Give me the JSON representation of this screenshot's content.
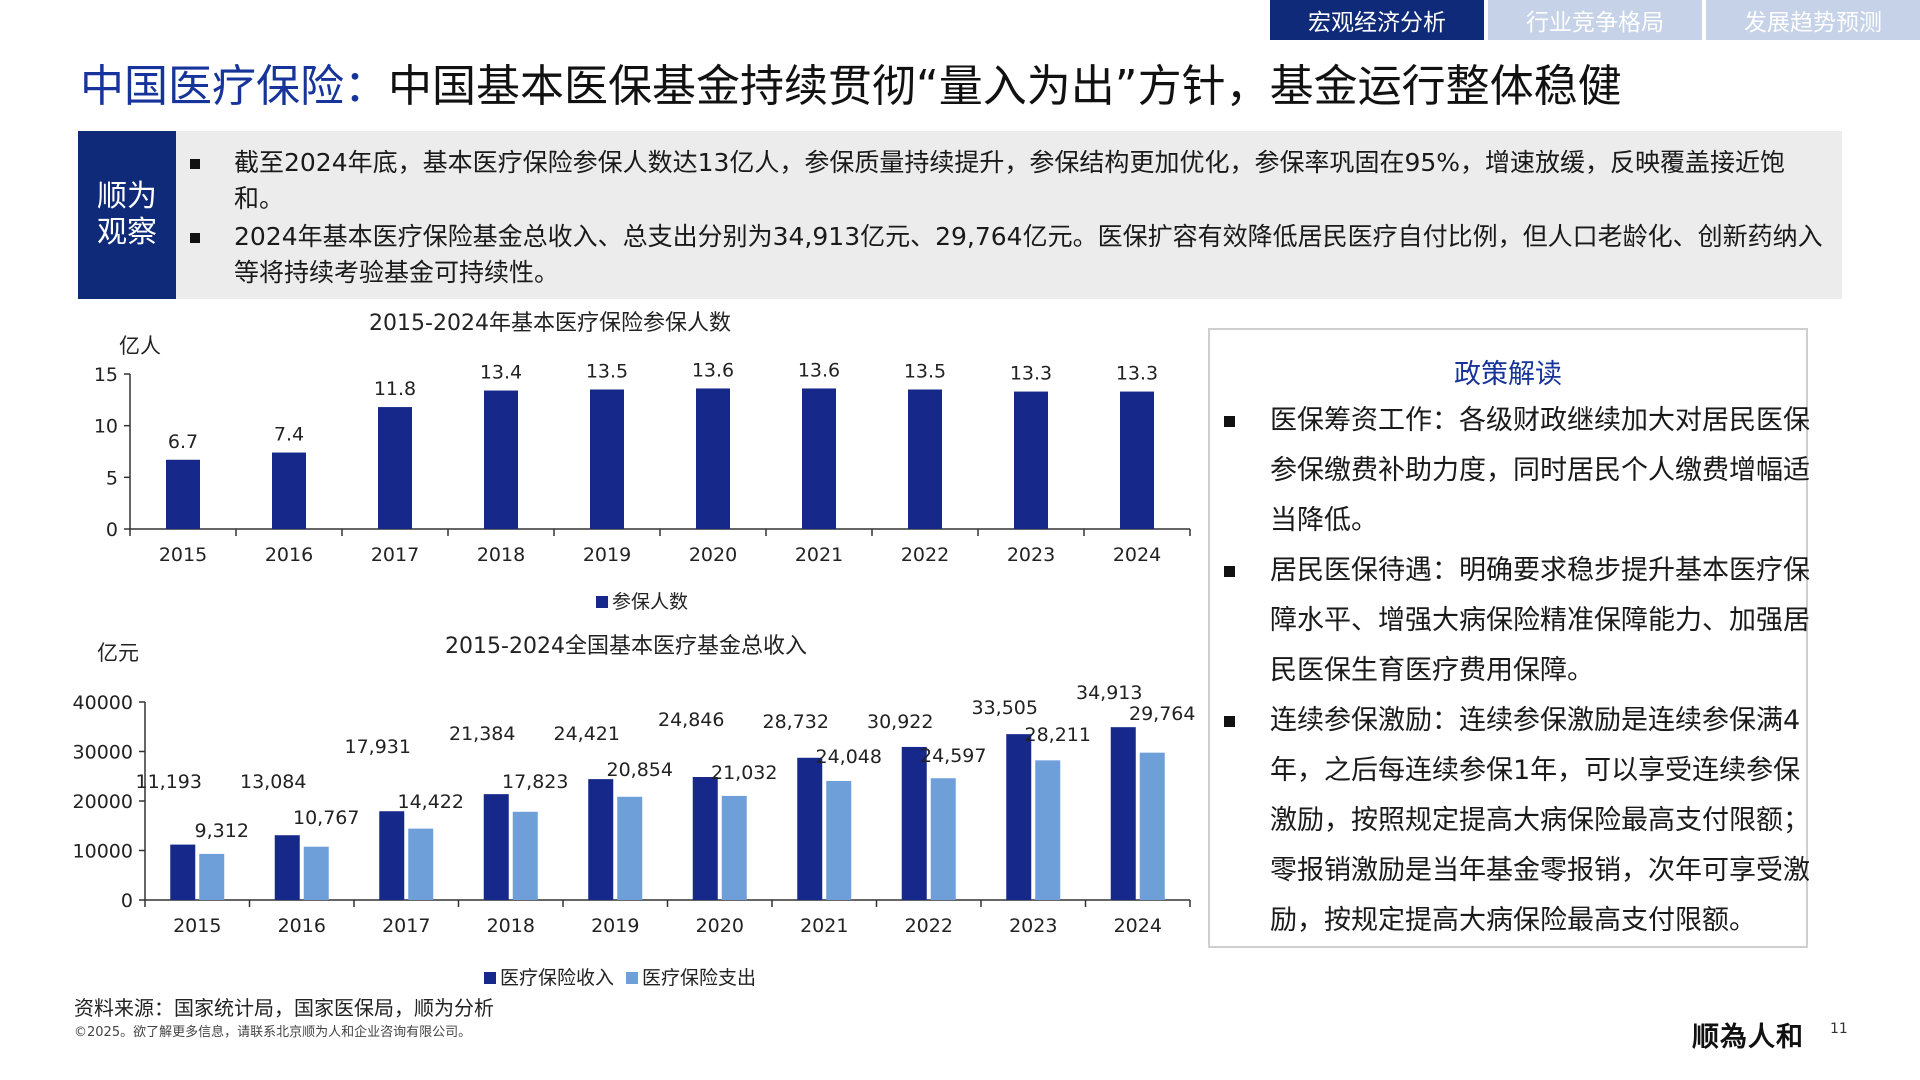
{
  "tabs": [
    "宏观经济分析",
    "行业竞争格局",
    "发展趋势预测"
  ],
  "title": {
    "part1": "中国医疗保险：",
    "part2": "中国基本医保基金持续贯彻“量入为出”方针，基金运行整体稳健"
  },
  "observation": {
    "label": "顺为观察",
    "bullets": [
      "截至2024年底，基本医疗保险参保人数达13亿人，参保质量持续提升，参保结构更加优化，参保率巩固在95%，增速放缓，反映覆盖接近饱和。",
      "2024年基本医疗保险基金总收入、总支出分别为34,913亿元、29,764亿元。医保扩容有效降低居民医疗自付比例，但人口老龄化、创新药纳入等将持续考验基金可持续性。"
    ]
  },
  "chart_data": [
    {
      "type": "bar",
      "title": "2015-2024年基本医疗保险参保人数",
      "ylabel": "亿人",
      "xlabel": "",
      "categories": [
        "2015",
        "2016",
        "2017",
        "2018",
        "2019",
        "2020",
        "2021",
        "2022",
        "2023",
        "2024"
      ],
      "series": [
        {
          "name": "参保人数",
          "values": [
            6.7,
            7.4,
            11.8,
            13.4,
            13.5,
            13.6,
            13.6,
            13.5,
            13.3,
            13.3
          ],
          "color": "#16288a"
        }
      ],
      "data_labels": [
        "6.7",
        "7.4",
        "11.8",
        "13.4",
        "13.5",
        "13.6",
        "13.6",
        "13.5",
        "13.3",
        "13.3"
      ],
      "ylim": [
        0,
        15
      ],
      "yticks": [
        "0",
        "5",
        "10",
        "15"
      ],
      "grid": false,
      "legend": "bottom-center"
    },
    {
      "type": "bar",
      "title": "2015-2024全国基本医疗基金总收入",
      "ylabel": "亿元",
      "xlabel": "",
      "categories": [
        "2015",
        "2016",
        "2017",
        "2018",
        "2019",
        "2020",
        "2021",
        "2022",
        "2023",
        "2024"
      ],
      "series": [
        {
          "name": "医疗保险收入",
          "values": [
            11193,
            13084,
            17931,
            21384,
            24421,
            24846,
            28732,
            30922,
            33505,
            34913
          ],
          "color": "#16288a",
          "labels": [
            "11,193",
            "13,084",
            "17,931",
            "21,384",
            "24,421",
            "24,846",
            "28,732",
            "30,922",
            "33,505",
            "34,913"
          ]
        },
        {
          "name": "医疗保险支出",
          "values": [
            9312,
            10767,
            14422,
            17823,
            20854,
            21032,
            24048,
            24597,
            28211,
            29764
          ],
          "color": "#6f9fd8",
          "labels": [
            "9,312",
            "10,767",
            "14,422",
            "17,823",
            "20,854",
            "21,032",
            "24,048",
            "24,597",
            "28,211",
            "29,764"
          ]
        }
      ],
      "ylim": [
        0,
        40000
      ],
      "yticks": [
        "0",
        "10000",
        "20000",
        "30000",
        "40000"
      ],
      "grid": false,
      "legend": "bottom-center"
    }
  ],
  "policy": {
    "title": "政策解读",
    "items": [
      "医保筹资工作：各级财政继续加大对居民医保参保缴费补助力度，同时居民个人缴费增幅适当降低。",
      "居民医保待遇：明确要求稳步提升基本医疗保障水平、增强大病保险精准保障能力、加强居民医保生育医疗费用保障。",
      "连续参保激励：连续参保激励是连续参保满4年，之后每连续参保1年，可以享受连续参保激励，按照规定提高大病保险最高支付限额；零报销激励是当年基金零报销，次年可享受激励，按规定提高大病保险最高支付限额。"
    ]
  },
  "footer": {
    "source": "资料来源：国家统计局，国家医保局，顺为分析",
    "copyright": "©2025。欲了解更多信息，请联系北京顺为人和企业咨询有限公司。",
    "logo": "顺為人和",
    "page_number": "11"
  }
}
